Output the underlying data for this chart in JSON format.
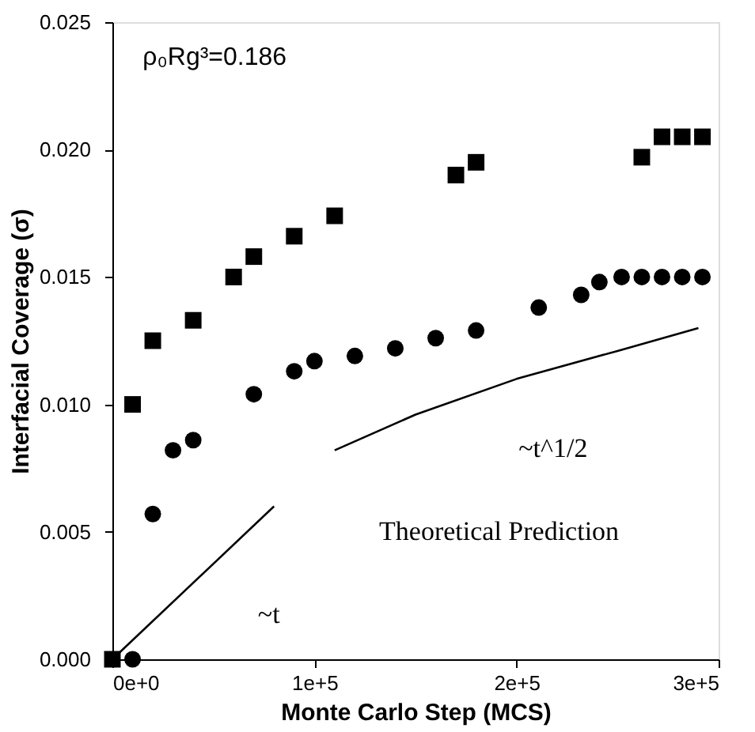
{
  "chart_data": {
    "type": "scatter",
    "xlabel": "Monte Carlo Step (MCS)",
    "ylabel": "Interfacial Coverage (σ)",
    "xlim": [
      0,
      300000
    ],
    "ylim": [
      0,
      0.025
    ],
    "xticks": [
      {
        "value": 0,
        "label": "0e+0"
      },
      {
        "value": 100000,
        "label": "1e+5"
      },
      {
        "value": 200000,
        "label": "2e+5"
      },
      {
        "value": 300000,
        "label": "3e+5"
      }
    ],
    "yticks": [
      {
        "value": 0,
        "label": "0.000"
      },
      {
        "value": 0.005,
        "label": "0.005"
      },
      {
        "value": 0.01,
        "label": "0.010"
      },
      {
        "value": 0.015,
        "label": "0.015"
      },
      {
        "value": 0.02,
        "label": "0.020"
      },
      {
        "value": 0.025,
        "label": "0.025"
      }
    ],
    "grid": false,
    "legend": false,
    "series": [
      {
        "marker": "square",
        "color": "#000000",
        "x": [
          0,
          10000,
          20000,
          40000,
          60000,
          70000,
          90000,
          110000,
          170000,
          180000,
          262000,
          272000,
          282000,
          292000
        ],
        "values": [
          0,
          0.01,
          0.0125,
          0.0133,
          0.015,
          0.0158,
          0.0166,
          0.0174,
          0.019,
          0.0195,
          0.0197,
          0.0205,
          0.0205,
          0.0205
        ]
      },
      {
        "marker": "circle",
        "color": "#000000",
        "x": [
          10000,
          20000,
          30000,
          40000,
          70000,
          90000,
          100000,
          120000,
          140000,
          160000,
          180000,
          211000,
          232000,
          241000,
          252000,
          262000,
          272000,
          282000,
          292000
        ],
        "values": [
          0,
          0.0057,
          0.0082,
          0.0086,
          0.0104,
          0.0113,
          0.0117,
          0.0119,
          0.0122,
          0.0126,
          0.0129,
          0.0138,
          0.0143,
          0.0148,
          0.015,
          0.015,
          0.015,
          0.015,
          0.015
        ]
      },
      {
        "type": "line",
        "line_style": "solid",
        "color": "#000000",
        "x": [
          0,
          80000
        ],
        "values": [
          0,
          0.006
        ]
      },
      {
        "type": "line",
        "line_style": "solid",
        "color": "#000000",
        "x": [
          110000,
          150000,
          200000,
          250000,
          290000
        ],
        "values": [
          0.0082,
          0.0096,
          0.011,
          0.0121,
          0.013
        ]
      }
    ],
    "annotations": [
      "ρ₀Rg³=0.186",
      "~t",
      "~t^1/2",
      "Theoretical Prediction"
    ]
  }
}
